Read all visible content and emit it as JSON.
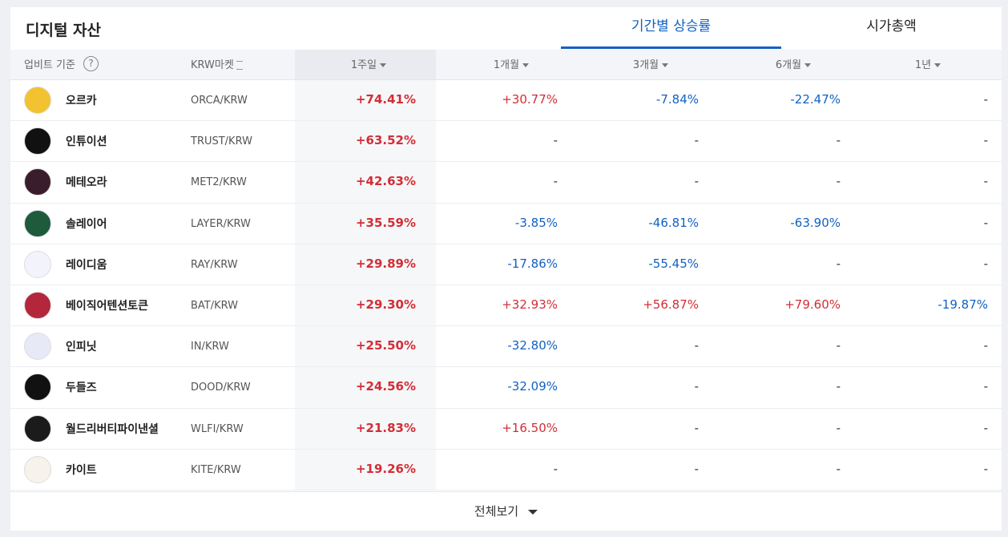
{
  "header": {
    "title": "디지털 자산",
    "tabs": [
      "기간별 상승률",
      "시가총액"
    ]
  },
  "table": {
    "columns": [
      "업비트 기준",
      "KRW마켓",
      "1주일",
      "1개월",
      "3개월",
      "6개월",
      "1년"
    ],
    "help": "?",
    "rows": [
      [
        "오르카",
        "ORCA/KRW",
        "+74.41%",
        "+30.77%",
        "-7.84%",
        "-22.47%",
        "-"
      ],
      [
        "인튜이션",
        "TRUST/KRW",
        "+63.52%",
        "-",
        "-",
        "-",
        "-"
      ],
      [
        "메테오라",
        "MET2/KRW",
        "+42.63%",
        "-",
        "-",
        "-",
        "-"
      ],
      [
        "솔레이어",
        "LAYER/KRW",
        "+35.59%",
        "-3.85%",
        "-46.81%",
        "-63.90%",
        "-"
      ],
      [
        "레이디움",
        "RAY/KRW",
        "+29.89%",
        "-17.86%",
        "-55.45%",
        "-",
        "-"
      ],
      [
        "베이직어텐션토큰",
        "BAT/KRW",
        "+29.30%",
        "+32.93%",
        "+56.87%",
        "+79.60%",
        "-19.87%"
      ],
      [
        "인피닛",
        "IN/KRW",
        "+25.50%",
        "-32.80%",
        "-",
        "-",
        "-"
      ],
      [
        "두들즈",
        "DOOD/KRW",
        "+24.56%",
        "-32.09%",
        "-",
        "-",
        "-"
      ],
      [
        "월드리버티파이낸셜",
        "WLFI/KRW",
        "+21.83%",
        "+16.50%",
        "-",
        "-",
        "-"
      ],
      [
        "카이트",
        "KITE/KRW",
        "+19.26%",
        "-",
        "-",
        "-",
        "-"
      ]
    ]
  },
  "footer": {
    "label": "전체보기"
  }
}
